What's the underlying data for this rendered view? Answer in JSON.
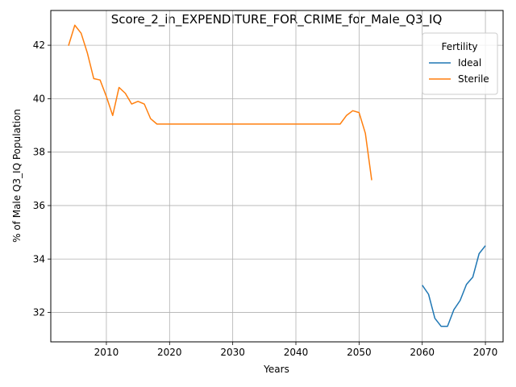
{
  "chart_data": {
    "type": "line",
    "title": "Score_2_in_EXPENDITURE_FOR_CRIME_for_Male_Q3_IQ",
    "xlabel": "Years",
    "ylabel": "% of Male Q3_IQ Population",
    "xlim": [
      2001.2,
      2072.8
    ],
    "ylim": [
      30.9,
      43.3
    ],
    "xticks": [
      2010,
      2020,
      2030,
      2040,
      2050,
      2060,
      2070
    ],
    "yticks": [
      32,
      34,
      36,
      38,
      40,
      42
    ],
    "grid": true,
    "legend": {
      "title": "Fertility",
      "placement": "top-right"
    },
    "series": [
      {
        "name": "Ideal",
        "color": "#1f77b4",
        "x": [
          2060,
          2061,
          2062,
          2063,
          2064,
          2065,
          2066,
          2067,
          2068,
          2069,
          2070
        ],
        "y": [
          33.02,
          32.68,
          31.78,
          31.48,
          31.48,
          32.1,
          32.45,
          33.05,
          33.32,
          34.2,
          34.5
        ]
      },
      {
        "name": "Sterile",
        "color": "#ff7f0e",
        "x": [
          2004,
          2005,
          2006,
          2007,
          2008,
          2009,
          2010,
          2011,
          2012,
          2013,
          2014,
          2015,
          2016,
          2017,
          2018,
          2019,
          2020,
          2021,
          2022,
          2023,
          2024,
          2025,
          2026,
          2027,
          2028,
          2029,
          2030,
          2031,
          2032,
          2033,
          2034,
          2035,
          2036,
          2037,
          2038,
          2039,
          2040,
          2041,
          2042,
          2043,
          2044,
          2045,
          2046,
          2047,
          2048,
          2049,
          2050,
          2051,
          2052
        ],
        "y": [
          41.98,
          42.75,
          42.45,
          41.7,
          40.75,
          40.7,
          40.08,
          39.37,
          40.42,
          40.2,
          39.8,
          39.9,
          39.8,
          39.25,
          39.05,
          39.05,
          39.05,
          39.05,
          39.05,
          39.05,
          39.05,
          39.05,
          39.05,
          39.05,
          39.05,
          39.05,
          39.05,
          39.05,
          39.05,
          39.05,
          39.05,
          39.05,
          39.05,
          39.05,
          39.05,
          39.05,
          39.05,
          39.05,
          39.05,
          39.05,
          39.05,
          39.05,
          39.05,
          39.05,
          39.37,
          39.55,
          39.48,
          38.7,
          36.95
        ]
      }
    ]
  }
}
